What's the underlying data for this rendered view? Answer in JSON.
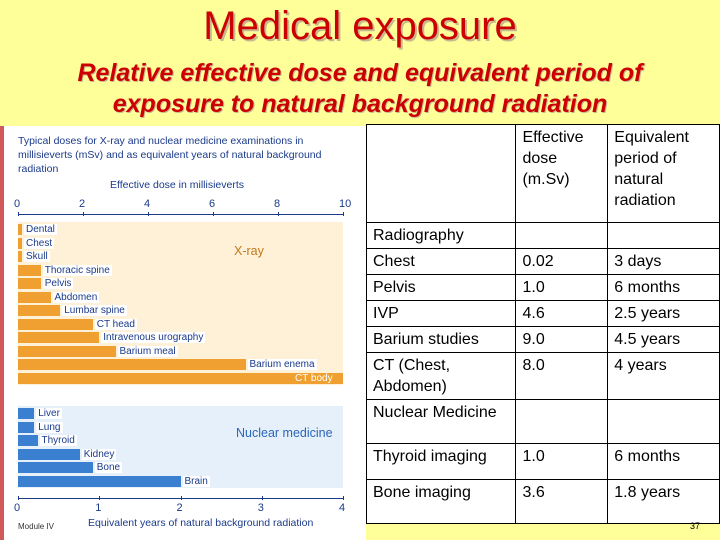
{
  "header": {
    "title": "Medical exposure",
    "subtitle_line1": "Relative effective dose and equivalent period of",
    "subtitle_line2": "exposure to natural background radiation"
  },
  "figure": {
    "caption_line1": "Typical doses for X-ray and nuclear medicine examinations in",
    "caption_line2": "millisieverts (mSv) and as equivalent years of natural background",
    "caption_line3": "radiation",
    "top_axis_title": "Effective dose in millisieverts",
    "top_ticks": [
      "0",
      "2",
      "4",
      "6",
      "8",
      "10"
    ],
    "bottom_axis_title": "Equivalent years of natural background radiation",
    "bottom_ticks": [
      "0",
      "1",
      "2",
      "3",
      "4"
    ],
    "xray_label": "X-ray",
    "nm_label": "Nuclear medicine",
    "xray_color": "#f0a030",
    "nm_color": "#3a7fd0",
    "xray_items": [
      {
        "label": "Dental",
        "dose": 0.02
      },
      {
        "label": "Chest",
        "dose": 0.02
      },
      {
        "label": "Skull",
        "dose": 0.07
      },
      {
        "label": "Thoracic spine",
        "dose": 0.7
      },
      {
        "label": "Pelvis",
        "dose": 0.7
      },
      {
        "label": "Abdomen",
        "dose": 1.0
      },
      {
        "label": "Lumbar spine",
        "dose": 1.3
      },
      {
        "label": "CT head",
        "dose": 2.3
      },
      {
        "label": "Intravenous urography",
        "dose": 2.5
      },
      {
        "label": "Barium meal",
        "dose": 3.0
      },
      {
        "label": "Barium enema",
        "dose": 7.0
      },
      {
        "label": "CT body",
        "dose": 10.0
      }
    ],
    "nm_items": [
      {
        "label": "Liver",
        "dose": 0.5
      },
      {
        "label": "Lung",
        "dose": 0.5
      },
      {
        "label": "Thyroid",
        "dose": 0.6
      },
      {
        "label": "Kidney",
        "dose": 1.9
      },
      {
        "label": "Bone",
        "dose": 2.3
      },
      {
        "label": "Brain",
        "dose": 5.0
      }
    ],
    "footer": "Module IV"
  },
  "table": {
    "header": [
      "",
      "Effective dose (m.Sv)",
      "Equivalent period of natural radiation"
    ],
    "sections": [
      {
        "title": "Radiography",
        "rows": [
          [
            "Chest",
            "0.02",
            "3 days"
          ],
          [
            "Pelvis",
            "1.0",
            "6 months"
          ],
          [
            "IVP",
            "4.6",
            "2.5 years"
          ],
          [
            "Barium studies",
            "9.0",
            "4.5 years"
          ],
          [
            "CT (Chest, Abdomen)",
            "8.0",
            "4 years"
          ]
        ]
      },
      {
        "title": "Nuclear Medicine",
        "rows": [
          [
            "Thyroid imaging",
            "1.0",
            "6 months"
          ],
          [
            "Bone imaging",
            "3.6",
            "1.8 years"
          ]
        ]
      }
    ]
  },
  "page_number": "37"
}
